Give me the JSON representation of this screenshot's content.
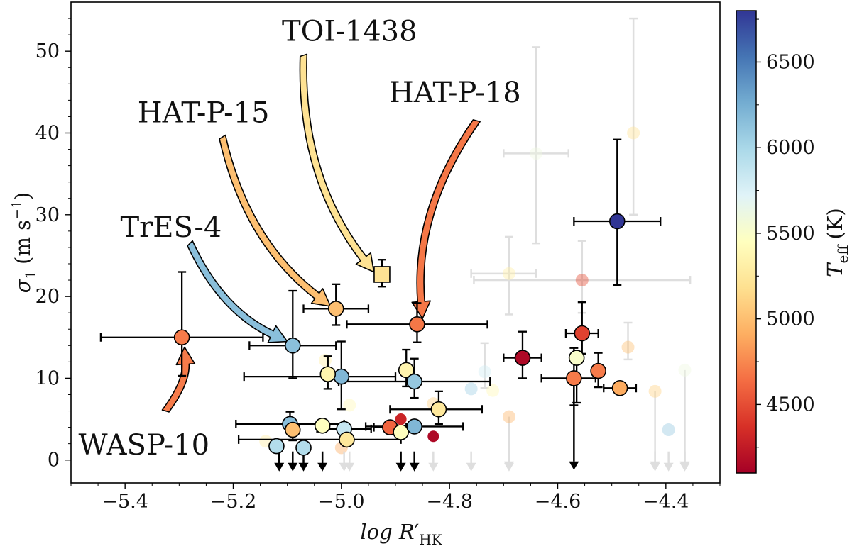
{
  "chart_data": {
    "type": "scatter",
    "xlabel_main": "log R",
    "xlabel_prime": "′",
    "xlabel_sub": "HK",
    "ylabel_main": "σ",
    "ylabel_sub": "1",
    "ylabel_units": "(m s",
    "ylabel_units_exp": "−1",
    "ylabel_units_close": ")",
    "xlim": [
      -5.5,
      -4.3
    ],
    "ylim": [
      -2.8,
      56
    ],
    "x_ticks": [
      -5.4,
      -5.2,
      -5.0,
      -4.8,
      -4.6,
      -4.4
    ],
    "x_tick_labels": [
      "−5.4",
      "−5.2",
      "−5.0",
      "−4.8",
      "−4.6",
      "−4.4"
    ],
    "y_ticks": [
      0,
      10,
      20,
      30,
      40,
      50
    ],
    "y_tick_labels": [
      "0",
      "10",
      "20",
      "30",
      "40",
      "50"
    ],
    "colorbar": {
      "label_main": "T",
      "label_sub": "eff",
      "label_units": "(K)",
      "range": [
        4100,
        6800
      ],
      "ticks": [
        4500,
        5000,
        5500,
        6000,
        6500
      ],
      "tick_labels": [
        "4500",
        "5000",
        "5500",
        "6000",
        "6500"
      ],
      "colormap": [
        "#a50026",
        "#d73027",
        "#f46d43",
        "#fdae61",
        "#fee090",
        "#ffffbf",
        "#e0f3f8",
        "#abd9e9",
        "#74add1",
        "#4575b4",
        "#313695"
      ]
    },
    "points": [
      {
        "x": -5.295,
        "y": 15.0,
        "teff": 4700,
        "xerr": [
          0.15,
          0.15
        ],
        "yerr": [
          4.7,
          8.0
        ],
        "faded": false
      },
      {
        "x": -5.09,
        "y": 14.0,
        "teff": 6150,
        "xerr": [
          0.08,
          0.08
        ],
        "yerr": [
          4.0,
          6.7
        ],
        "faded": false
      },
      {
        "x": -5.01,
        "y": 18.5,
        "teff": 5000,
        "xerr": [
          0.06,
          0.06
        ],
        "yerr": [
          2.0,
          3.0
        ],
        "faded": false
      },
      {
        "x": -4.925,
        "y": 22.7,
        "teff": 5200,
        "marker": "square",
        "yerr": [
          1.5,
          1.8
        ],
        "faded": false
      },
      {
        "x": -4.86,
        "y": 16.6,
        "teff": 4680,
        "xerr": [
          0.13,
          0.13
        ],
        "yerr": [
          2.2,
          2.6
        ],
        "faded": false
      },
      {
        "x": -4.49,
        "y": 29.2,
        "teff": 6800,
        "xerr": [
          0.08,
          0.08
        ],
        "yerr": [
          7.8,
          10.0
        ],
        "faded": false
      },
      {
        "x": -4.665,
        "y": 12.5,
        "teff": 4150,
        "xerr": [
          0.035,
          0.035
        ],
        "yerr": [
          2.5,
          3.2
        ],
        "faded": false
      },
      {
        "x": -4.555,
        "y": 15.5,
        "teff": 4450,
        "xerr": [
          0.03,
          0.03
        ],
        "yerr": [
          2.5,
          3.8
        ],
        "faded": false
      },
      {
        "x": -4.525,
        "y": 10.9,
        "teff": 4700,
        "yerr": [
          2.0,
          2.2
        ],
        "faded": false
      },
      {
        "x": -4.565,
        "y": 12.5,
        "teff": 5500,
        "yerr": [
          5.5,
          0
        ],
        "faded": false
      },
      {
        "x": -4.57,
        "y": 10.0,
        "teff": 4700,
        "xerr": [
          0.06,
          0.04
        ],
        "yerr": [
          3.3,
          3.7
        ],
        "faded": false
      },
      {
        "x": -4.485,
        "y": 8.8,
        "teff": 4900,
        "xerr": [
          0.03,
          0.03
        ],
        "faded": false
      },
      {
        "x": -5.0,
        "y": 10.2,
        "teff": 6200,
        "xerr": [
          0.18,
          0.1
        ],
        "yerr": [
          4.0,
          4.3
        ],
        "faded": false
      },
      {
        "x": -5.025,
        "y": 10.5,
        "teff": 5350,
        "yerr": [
          1.8,
          2.2
        ],
        "faded": false
      },
      {
        "x": -4.88,
        "y": 11.0,
        "teff": 5350,
        "yerr": [
          2.0,
          2.5
        ],
        "faded": false
      },
      {
        "x": -4.865,
        "y": 9.6,
        "teff": 6100,
        "xerr": [
          0.14,
          0.14
        ],
        "yerr": [
          2.0,
          2.8
        ],
        "faded": false
      },
      {
        "x": -4.82,
        "y": 6.2,
        "teff": 5250,
        "xerr": [
          0.09,
          0.08
        ],
        "yerr": [
          1.8,
          2.2
        ],
        "faded": false
      },
      {
        "x": -5.095,
        "y": 4.4,
        "teff": 6150,
        "xerr": [
          0.1,
          0.1
        ],
        "yerr": [
          1.0,
          1.5
        ],
        "faded": false
      },
      {
        "x": -5.09,
        "y": 3.7,
        "teff": 5000,
        "yerr": [
          1.3,
          1.0
        ],
        "faded": false
      },
      {
        "x": -5.035,
        "y": 4.2,
        "teff": 5450,
        "faded": false
      },
      {
        "x": -4.995,
        "y": 3.8,
        "teff": 5850,
        "xerr": [
          0.05,
          0.05
        ],
        "faded": false
      },
      {
        "x": -4.91,
        "y": 4.0,
        "teff": 4600,
        "xerr": [
          0.03,
          0.03
        ],
        "faded": false
      },
      {
        "x": -4.89,
        "y": 3.4,
        "teff": 5450,
        "faded": false
      },
      {
        "x": -4.865,
        "y": 4.1,
        "teff": 6200,
        "xerr": [
          0.09,
          0.09
        ],
        "faded": false
      },
      {
        "x": -4.89,
        "y": 5.0,
        "teff": 4300,
        "small": true,
        "faded": false
      },
      {
        "x": -4.83,
        "y": 2.9,
        "teff": 4150,
        "small": true,
        "faded": false
      },
      {
        "x": -5.12,
        "y": 1.7,
        "teff": 5950,
        "faded": false
      },
      {
        "x": -5.07,
        "y": 1.5,
        "teff": 5950,
        "faded": false
      },
      {
        "x": -4.99,
        "y": 2.5,
        "teff": 5250,
        "xerr": [
          0.2,
          0.1
        ],
        "faded": false
      },
      {
        "x": -4.64,
        "y": 37.5,
        "teff": 5600,
        "faded": true,
        "xerr": [
          0.06,
          0.06
        ],
        "yerr": [
          11.0,
          13.0
        ]
      },
      {
        "x": -4.46,
        "y": 40.0,
        "teff": 5200,
        "faded": true,
        "yerr": [
          10.0,
          14.0
        ]
      },
      {
        "x": -4.69,
        "y": 22.8,
        "teff": 5300,
        "faded": true,
        "xerr": [
          0.07,
          0.05
        ],
        "yerr": [
          5.0,
          4.5
        ]
      },
      {
        "x": -4.555,
        "y": 22.0,
        "teff": 4500,
        "faded": true,
        "xerr": [
          0.2,
          0.2
        ],
        "yerr": [
          4.0,
          4.8
        ]
      },
      {
        "x": -4.47,
        "y": 13.8,
        "teff": 5000,
        "faded": true,
        "yerr": [
          1.5,
          3.0
        ]
      },
      {
        "x": -4.365,
        "y": 11.0,
        "teff": 5600,
        "faded": true
      },
      {
        "x": -4.735,
        "y": 10.8,
        "teff": 5800,
        "faded": true,
        "yerr": [
          2.0,
          3.5
        ]
      },
      {
        "x": -4.72,
        "y": 8.5,
        "teff": 5400,
        "faded": true
      },
      {
        "x": -4.76,
        "y": 8.7,
        "teff": 6050,
        "faded": true
      },
      {
        "x": -4.42,
        "y": 8.4,
        "teff": 5100,
        "faded": true
      },
      {
        "x": -4.395,
        "y": 3.7,
        "teff": 6100,
        "faded": true
      },
      {
        "x": -4.69,
        "y": 5.3,
        "teff": 4950,
        "faded": true
      },
      {
        "x": -4.83,
        "y": 6.9,
        "teff": 5100,
        "faded": true
      },
      {
        "x": -4.985,
        "y": 6.7,
        "teff": 5400,
        "faded": true
      },
      {
        "x": -5.03,
        "y": 12.2,
        "teff": 5300,
        "faded": true
      },
      {
        "x": -5.14,
        "y": 2.3,
        "teff": 5300,
        "faded": true
      },
      {
        "x": -5.0,
        "y": 1.5,
        "teff": 4900,
        "faded": true
      }
    ],
    "upper_limit_arrows": [
      {
        "x": -5.115,
        "faded": false
      },
      {
        "x": -5.09,
        "faded": false
      },
      {
        "x": -5.07,
        "faded": false
      },
      {
        "x": -5.035,
        "faded": false
      },
      {
        "x": -4.995,
        "faded": true
      },
      {
        "x": -4.985,
        "faded": true
      },
      {
        "x": -4.89,
        "faded": false
      },
      {
        "x": -4.865,
        "faded": false
      },
      {
        "x": -4.83,
        "faded": true
      },
      {
        "x": -4.76,
        "faded": true
      },
      {
        "x": -4.69,
        "faded": true
      },
      {
        "x": -4.42,
        "faded": true
      },
      {
        "x": -4.395,
        "faded": true
      },
      {
        "x": -4.365,
        "faded": true
      }
    ],
    "long_limit_arrows": [
      {
        "x": -4.57,
        "from": 10.0,
        "faded": false
      },
      {
        "x": -4.69,
        "from": 5.3,
        "faded": true
      },
      {
        "x": -4.42,
        "from": 8.4,
        "faded": true
      },
      {
        "x": -4.365,
        "from": 11.0,
        "faded": true
      }
    ],
    "annotations": [
      {
        "text": "TOI-1438",
        "tx": -4.985,
        "ty": 52.5,
        "arrow_from": [
          -5.07,
          49.5
        ],
        "arrow_to": [
          -4.94,
          23.0
        ],
        "teff": 5200
      },
      {
        "text": "HAT-P-18",
        "tx": -4.79,
        "ty": 45.0,
        "arrow_from": [
          -4.75,
          41.5
        ],
        "arrow_to": [
          -4.85,
          17.3
        ],
        "teff": 4680
      },
      {
        "text": "HAT-P-15",
        "tx": -5.255,
        "ty": 42.5,
        "arrow_from": [
          -5.22,
          39.5
        ],
        "arrow_to": [
          -5.02,
          18.8
        ],
        "teff": 5000
      },
      {
        "text": "TrES-4",
        "tx": -5.315,
        "ty": 28.5,
        "arrow_from": [
          -5.28,
          26.5
        ],
        "arrow_to": [
          -5.1,
          14.5
        ],
        "teff": 6150
      },
      {
        "text": "WASP-10",
        "tx": -5.365,
        "ty": 1.9,
        "arrow_from": [
          -5.325,
          6.0
        ],
        "arrow_to": [
          -5.29,
          13.8
        ],
        "teff": 4700
      }
    ]
  }
}
